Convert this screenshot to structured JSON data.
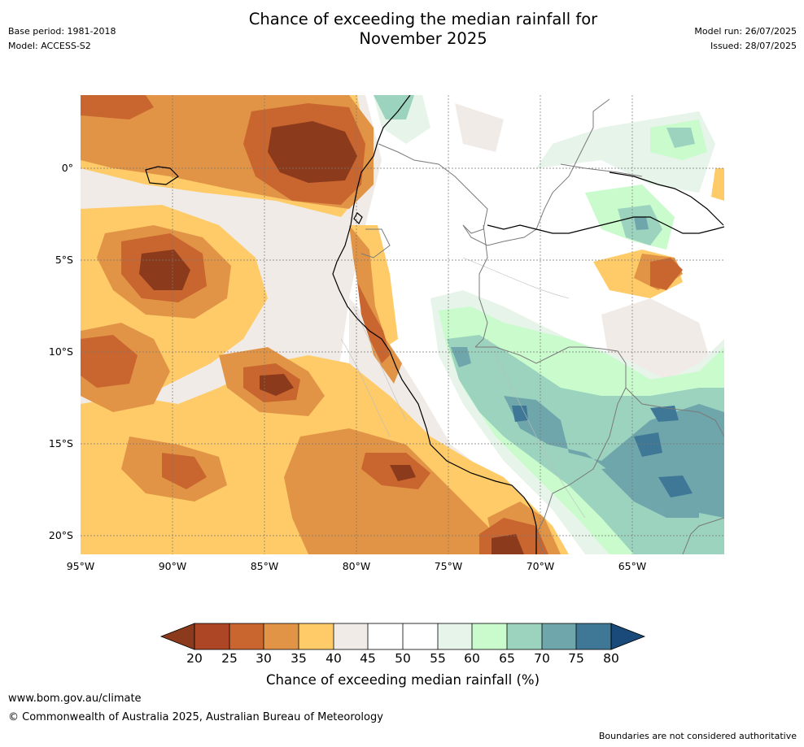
{
  "header": {
    "title_line1": "Chance of exceeding the median rainfall for",
    "title_line2": "November 2025",
    "base_period": "Base period: 1981-2018",
    "model": "Model: ACCESS-S2",
    "model_run": "Model run: 26/07/2025",
    "issued": "Issued: 28/07/2025"
  },
  "map": {
    "x_ticks": [
      "95°W",
      "90°W",
      "85°W",
      "80°W",
      "75°W",
      "70°W",
      "65°W"
    ],
    "y_ticks": [
      "0°",
      "5°S",
      "10°S",
      "15°S",
      "20°S"
    ],
    "extent": {
      "lon_min": -95,
      "lon_max": -60,
      "lat_min": -21,
      "lat_max": 4
    }
  },
  "colorbar": {
    "labels": [
      "20",
      "25",
      "30",
      "35",
      "40",
      "45",
      "50",
      "55",
      "60",
      "65",
      "70",
      "75",
      "80"
    ],
    "colors": [
      "#8c3a1c",
      "#ad4625",
      "#c9652f",
      "#e19446",
      "#fecb68",
      "#f0ebe6",
      "#ffffff",
      "#ffffff",
      "#e6f4e9",
      "#c9fbcc",
      "#9bd3bf",
      "#6fa6ab",
      "#3e7896",
      "#1a4a7a"
    ],
    "title": "Chance of exceeding median rainfall (%)"
  },
  "footer": {
    "website": "www.bom.gov.au/climate",
    "copyright": "© Commonwealth of Australia 2025, Australian Bureau of Meteorology",
    "disclaimer": "Boundaries are not considered authoritative"
  }
}
